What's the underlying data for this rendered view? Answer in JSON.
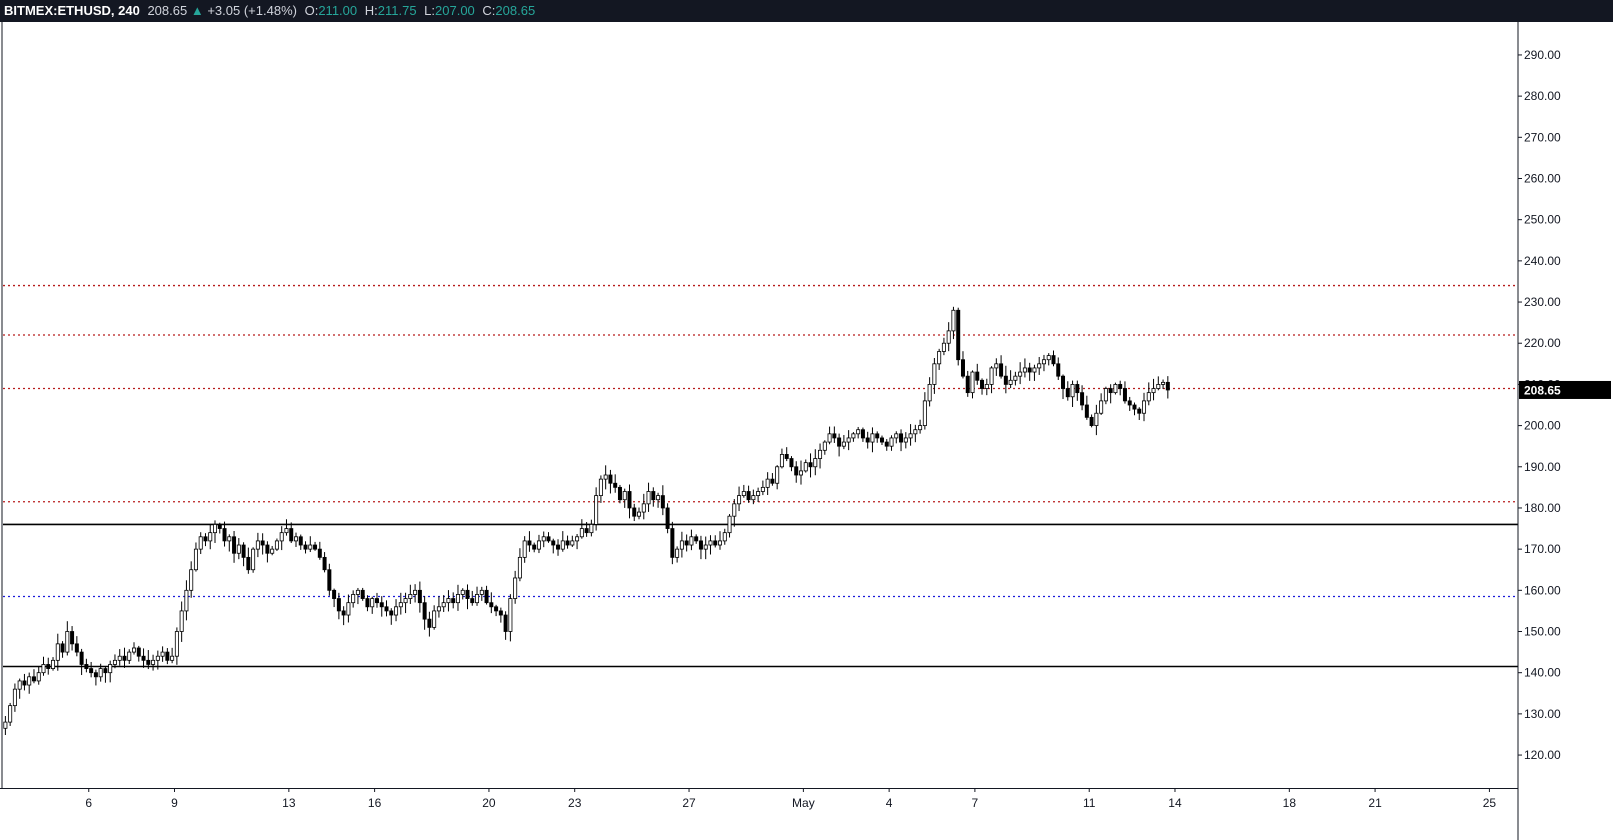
{
  "header": {
    "symbol": "BITMEX:ETHUSD,",
    "interval": "240",
    "last": "208.65",
    "change": "+3.05 (+1.48%)",
    "open_label": "O:",
    "open": "211.00",
    "high_label": "H:",
    "high": "211.75",
    "low_label": "L:",
    "low": "207.00",
    "close_label": "C:",
    "close": "208.65"
  },
  "colors": {
    "up": "#26a69a",
    "candle_up_fill": "#ffffff",
    "candle_down_fill": "#000000",
    "resistance_dotted": "#b71c1c",
    "support_dotted": "#1a1adb",
    "solid_level": "#000000",
    "price_tag": "#000000"
  },
  "chart_data": {
    "type": "candlestick",
    "ylim": [
      112,
      298
    ],
    "y_ticks": [
      120,
      130,
      140,
      150,
      160,
      170,
      180,
      190,
      200,
      210,
      220,
      230,
      240,
      250,
      260,
      270,
      280,
      290
    ],
    "y_tick_labels": [
      "120.00",
      "130.00",
      "140.00",
      "150.00",
      "160.00",
      "170.00",
      "180.00",
      "190.00",
      "200.00",
      "210.00",
      "220.00",
      "230.00",
      "240.00",
      "250.00",
      "260.00",
      "270.00",
      "280.00",
      "290.00"
    ],
    "x_domain": [
      "2019-04-03",
      "2019-05-26"
    ],
    "x_ticks": [
      {
        "date": "2019-04-06",
        "label": "6"
      },
      {
        "date": "2019-04-09",
        "label": "9"
      },
      {
        "date": "2019-04-13",
        "label": "13"
      },
      {
        "date": "2019-04-16",
        "label": "16"
      },
      {
        "date": "2019-04-20",
        "label": "20"
      },
      {
        "date": "2019-04-23",
        "label": "23"
      },
      {
        "date": "2019-04-27",
        "label": "27"
      },
      {
        "date": "2019-05-01",
        "label": "May"
      },
      {
        "date": "2019-05-04",
        "label": "4"
      },
      {
        "date": "2019-05-07",
        "label": "7"
      },
      {
        "date": "2019-05-11",
        "label": "11"
      },
      {
        "date": "2019-05-14",
        "label": "14"
      },
      {
        "date": "2019-05-18",
        "label": "18"
      },
      {
        "date": "2019-05-21",
        "label": "21"
      },
      {
        "date": "2019-05-25",
        "label": "25"
      }
    ],
    "first_candle": "2019-04-03",
    "interval_hours": 4,
    "closes": [
      128,
      132,
      136,
      138,
      137,
      139,
      138,
      140,
      142,
      141,
      143,
      147,
      145,
      150,
      147,
      145,
      142,
      141,
      140,
      139,
      141,
      140,
      142,
      143,
      144,
      143,
      145,
      146,
      144,
      143,
      142,
      143,
      144,
      145,
      143,
      144,
      150,
      155,
      160,
      165,
      170,
      173,
      172,
      174,
      176,
      175,
      172,
      173,
      169,
      171,
      168,
      165,
      170,
      172,
      171,
      169,
      170,
      172,
      174,
      175,
      172,
      173,
      171,
      170,
      171,
      170,
      168,
      165,
      160,
      158,
      155,
      154,
      157,
      159,
      160,
      158,
      156,
      158,
      157,
      156,
      155,
      154,
      156,
      157,
      158,
      159,
      160,
      157,
      153,
      151,
      155,
      156,
      157,
      158,
      157,
      159,
      160,
      158,
      157,
      159,
      160,
      157,
      156,
      155,
      154,
      150,
      158,
      163,
      168,
      172,
      171,
      170,
      172,
      173,
      172,
      171,
      170,
      172,
      171,
      172,
      173,
      175,
      174,
      176,
      183,
      187,
      188,
      186,
      185,
      182,
      184,
      180,
      178,
      179,
      181,
      184,
      182,
      183,
      180,
      175,
      168,
      170,
      172,
      171,
      173,
      172,
      170,
      171,
      172,
      171,
      172,
      174,
      178,
      181,
      183,
      184,
      182,
      183,
      184,
      185,
      187,
      186,
      190,
      193,
      192,
      190,
      188,
      189,
      191,
      190,
      192,
      194,
      196,
      198,
      197,
      195,
      196,
      197,
      198,
      199,
      197,
      196,
      198,
      197,
      196,
      195,
      197,
      198,
      196,
      197,
      198,
      199,
      200,
      206,
      210,
      215,
      218,
      220,
      223,
      228,
      216,
      212,
      208,
      213,
      211,
      209,
      210,
      214,
      215,
      212,
      210,
      211,
      212,
      213,
      214,
      213,
      214,
      215,
      216,
      217,
      215,
      212,
      209,
      207,
      210,
      208,
      205,
      202,
      200,
      203,
      206,
      209,
      208,
      210,
      209,
      206,
      205,
      204,
      203,
      206,
      208,
      209,
      210,
      210.5,
      208.65
    ]
  },
  "levels": {
    "resistance_dotted": [
      234,
      222,
      209,
      181.5
    ],
    "support_dotted": [
      158.5
    ],
    "solid": [
      176,
      141.5
    ]
  },
  "price_tag": "208.65"
}
